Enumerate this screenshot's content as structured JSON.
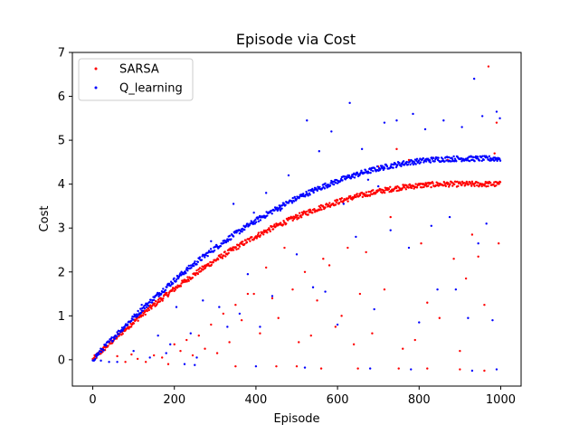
{
  "chart_data": {
    "type": "scatter",
    "title": "Episode via Cost",
    "xlabel": "Episode",
    "ylabel": "Cost",
    "xlim": [
      -50,
      1050
    ],
    "ylim": [
      -0.6,
      7
    ],
    "xticks": [
      0,
      200,
      400,
      600,
      800,
      1000
    ],
    "yticks": [
      0,
      1,
      2,
      3,
      4,
      5,
      6,
      7
    ],
    "grid": false,
    "legend_position": "top-left",
    "series": [
      {
        "name": "SARSA",
        "color": "#ff0000",
        "trend": {
          "x_max": 1000,
          "plateau": 4.0,
          "rise_until": 880
        },
        "outliers": [
          [
            60,
            0.08
          ],
          [
            95,
            0.12
          ],
          [
            110,
            0.02
          ],
          [
            130,
            -0.05
          ],
          [
            150,
            0.1
          ],
          [
            170,
            0.05
          ],
          [
            185,
            -0.1
          ],
          [
            200,
            0.35
          ],
          [
            215,
            0.2
          ],
          [
            230,
            0.45
          ],
          [
            245,
            0.1
          ],
          [
            260,
            0.55
          ],
          [
            275,
            0.25
          ],
          [
            290,
            0.8
          ],
          [
            305,
            0.15
          ],
          [
            320,
            1.05
          ],
          [
            335,
            0.4
          ],
          [
            350,
            1.25
          ],
          [
            365,
            0.9
          ],
          [
            380,
            1.5
          ],
          [
            395,
            1.5
          ],
          [
            410,
            0.6
          ],
          [
            425,
            2.1
          ],
          [
            440,
            1.4
          ],
          [
            455,
            0.95
          ],
          [
            470,
            2.55
          ],
          [
            490,
            1.6
          ],
          [
            505,
            0.4
          ],
          [
            520,
            2.0
          ],
          [
            535,
            0.55
          ],
          [
            550,
            1.35
          ],
          [
            565,
            2.3
          ],
          [
            580,
            2.15
          ],
          [
            595,
            0.75
          ],
          [
            610,
            1.0
          ],
          [
            625,
            2.55
          ],
          [
            640,
            0.35
          ],
          [
            655,
            1.5
          ],
          [
            670,
            2.45
          ],
          [
            685,
            0.6
          ],
          [
            700,
            4.4
          ],
          [
            715,
            1.6
          ],
          [
            730,
            3.25
          ],
          [
            745,
            4.8
          ],
          [
            760,
            0.25
          ],
          [
            775,
            4.55
          ],
          [
            790,
            0.45
          ],
          [
            805,
            2.65
          ],
          [
            820,
            1.3
          ],
          [
            835,
            4.6
          ],
          [
            850,
            0.95
          ],
          [
            870,
            4.55
          ],
          [
            885,
            2.3
          ],
          [
            900,
            0.2
          ],
          [
            915,
            1.85
          ],
          [
            930,
            2.85
          ],
          [
            945,
            2.35
          ],
          [
            960,
            1.25
          ],
          [
            970,
            6.68
          ],
          [
            985,
            4.7
          ],
          [
            995,
            2.65
          ],
          [
            990,
            5.4
          ],
          [
            80,
            -0.05
          ],
          [
            350,
            -0.15
          ],
          [
            450,
            -0.15
          ],
          [
            500,
            -0.15
          ],
          [
            560,
            -0.2
          ],
          [
            650,
            -0.2
          ],
          [
            750,
            -0.2
          ],
          [
            820,
            -0.2
          ],
          [
            900,
            -0.22
          ],
          [
            960,
            -0.25
          ]
        ]
      },
      {
        "name": "Q_learning",
        "color": "#0000ff",
        "trend": {
          "x_max": 1000,
          "plateau": 4.58,
          "rise_until": 900
        },
        "outliers": [
          [
            20,
            -0.02
          ],
          [
            40,
            -0.05
          ],
          [
            100,
            0.2
          ],
          [
            120,
            1.25
          ],
          [
            140,
            0.05
          ],
          [
            160,
            0.55
          ],
          [
            180,
            0.15
          ],
          [
            190,
            0.35
          ],
          [
            205,
            1.2
          ],
          [
            225,
            -0.1
          ],
          [
            240,
            0.6
          ],
          [
            255,
            0.05
          ],
          [
            270,
            1.35
          ],
          [
            290,
            2.7
          ],
          [
            310,
            1.2
          ],
          [
            330,
            0.75
          ],
          [
            345,
            3.55
          ],
          [
            360,
            1.05
          ],
          [
            380,
            1.95
          ],
          [
            395,
            3.35
          ],
          [
            410,
            0.75
          ],
          [
            425,
            3.8
          ],
          [
            440,
            1.45
          ],
          [
            460,
            3.4
          ],
          [
            480,
            4.2
          ],
          [
            500,
            2.4
          ],
          [
            525,
            5.45
          ],
          [
            540,
            1.65
          ],
          [
            555,
            4.75
          ],
          [
            570,
            1.55
          ],
          [
            585,
            5.2
          ],
          [
            600,
            0.8
          ],
          [
            615,
            3.55
          ],
          [
            630,
            5.85
          ],
          [
            645,
            2.8
          ],
          [
            660,
            4.8
          ],
          [
            675,
            4.1
          ],
          [
            690,
            1.15
          ],
          [
            700,
            3.95
          ],
          [
            715,
            5.4
          ],
          [
            730,
            2.95
          ],
          [
            745,
            5.45
          ],
          [
            760,
            4.5
          ],
          [
            775,
            2.55
          ],
          [
            785,
            5.6
          ],
          [
            800,
            0.85
          ],
          [
            815,
            5.25
          ],
          [
            830,
            3.05
          ],
          [
            845,
            1.6
          ],
          [
            860,
            5.45
          ],
          [
            875,
            3.25
          ],
          [
            890,
            1.6
          ],
          [
            905,
            5.3
          ],
          [
            920,
            0.95
          ],
          [
            935,
            6.4
          ],
          [
            945,
            2.65
          ],
          [
            955,
            5.55
          ],
          [
            965,
            3.1
          ],
          [
            980,
            0.9
          ],
          [
            990,
            5.65
          ],
          [
            998,
            5.5
          ],
          [
            60,
            -0.05
          ],
          [
            250,
            -0.12
          ],
          [
            400,
            -0.15
          ],
          [
            520,
            -0.18
          ],
          [
            680,
            -0.2
          ],
          [
            780,
            -0.22
          ],
          [
            930,
            -0.25
          ],
          [
            990,
            -0.22
          ]
        ]
      }
    ]
  }
}
